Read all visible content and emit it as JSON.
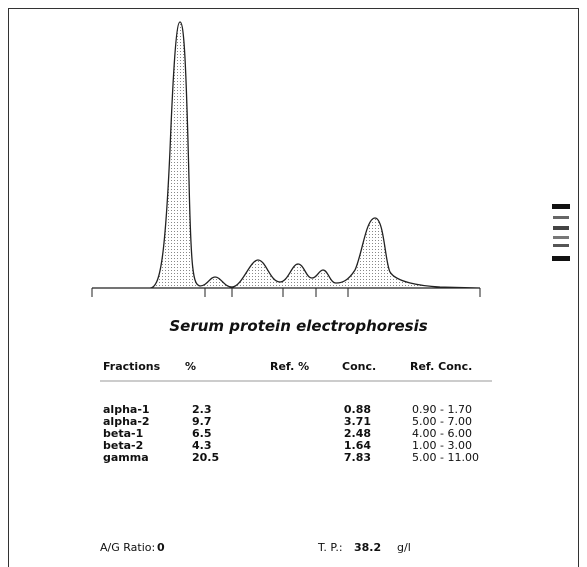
{
  "report": {
    "title": "Serum protein electrophoresis",
    "table": {
      "headers": [
        "Fractions",
        "%",
        "Ref. %",
        "Conc.",
        "Ref. Conc."
      ],
      "rows": [
        {
          "fraction": "alpha-1",
          "percent": "2.3",
          "conc": "0.88",
          "ref_conc": "0.90 - 1.70"
        },
        {
          "fraction": "alpha-2",
          "percent": "9.7",
          "conc": "3.71",
          "ref_conc": "5.00 - 7.00"
        },
        {
          "fraction": "beta-1",
          "percent": "6.5",
          "conc": "2.48",
          "ref_conc": "4.00 - 6.00"
        },
        {
          "fraction": "beta-2",
          "percent": "4.3",
          "conc": "1.64",
          "ref_conc": "1.00 - 3.00"
        },
        {
          "fraction": "gamma",
          "percent": "20.5",
          "conc": "7.83",
          "ref_conc": "5.00 - 11.00"
        }
      ]
    },
    "footer": {
      "ag_label": "A/G Ratio:",
      "ag_value": "0",
      "tp_label": "T. P.:",
      "tp_value": "38.2",
      "tp_unit": "g/l"
    }
  }
}
